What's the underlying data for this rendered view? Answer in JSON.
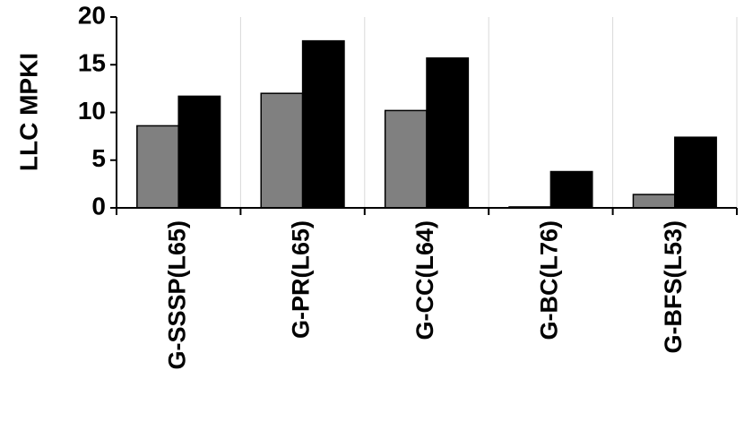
{
  "chart_data": {
    "type": "bar",
    "ylabel": "LLC MPKI",
    "categories": [
      "G-SSSP(L65)",
      "G-PR(L65)",
      "G-CC(L64)",
      "G-BC(L76)",
      "G-BFS(L53)"
    ],
    "series": [
      {
        "color": "#808080",
        "values": [
          8.6,
          12.0,
          10.2,
          0.1,
          1.4
        ]
      },
      {
        "color": "#000000",
        "values": [
          11.7,
          17.5,
          15.7,
          3.8,
          7.4
        ]
      }
    ],
    "ylim": [
      0,
      20
    ],
    "yticks": [
      0,
      5,
      10,
      15,
      20
    ],
    "grid": true
  }
}
